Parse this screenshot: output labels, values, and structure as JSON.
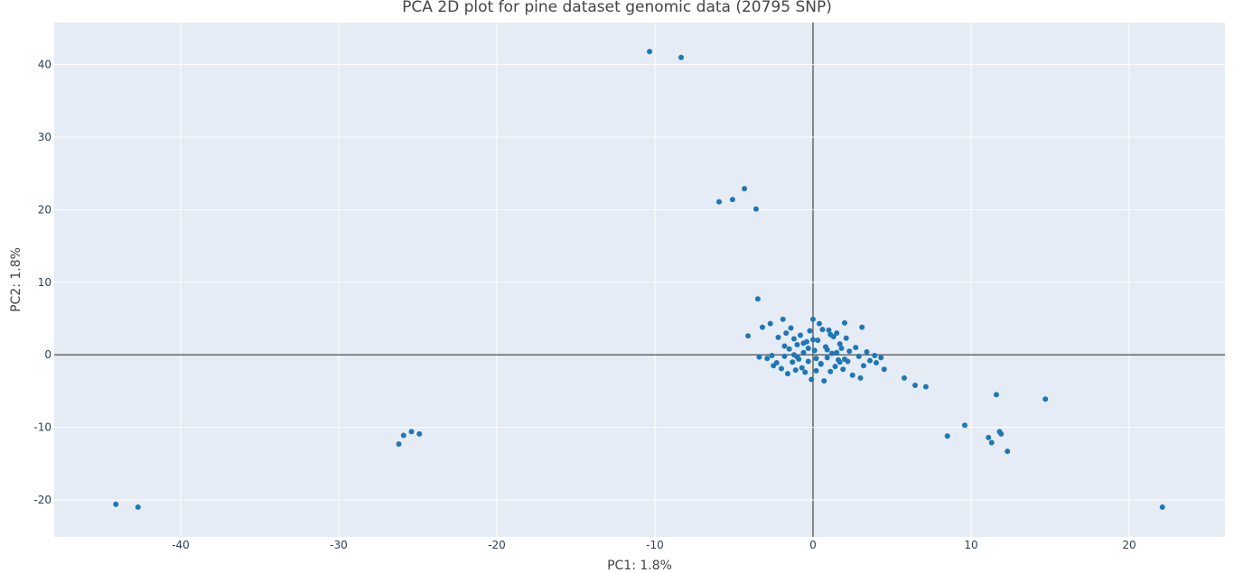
{
  "chart_data": {
    "type": "scatter",
    "title": "PCA 2D plot for pine dataset genomic data (20795 SNP)",
    "x_label": "PC1: 1.8%",
    "y_label": "PC2: 1.8%",
    "xlim": [
      -48,
      26.06
    ],
    "ylim": [
      -25.1,
      45.8
    ],
    "xticks": [
      -40,
      -30,
      -20,
      -10,
      0,
      10,
      20
    ],
    "yticks": [
      -20,
      -10,
      0,
      10,
      20,
      30,
      40
    ],
    "grid": true,
    "zero_lines": true,
    "series": [
      {
        "color": "#1f77b4",
        "x": [
          -10.34,
          -8.34,
          -4.34,
          -5.09,
          -5.94,
          -3.6,
          -3.49,
          -4.11,
          -44.1,
          -42.7,
          -26.2,
          -25.9,
          -25.4,
          -24.9,
          22.1,
          14.7,
          11.6,
          9.6,
          8.5,
          11.1,
          11.3,
          11.8,
          11.9,
          12.3,
          5.77,
          6.46,
          7.14,
          4.5,
          4.0,
          4.3,
          -3.4,
          -3.2,
          -2.9,
          -2.7,
          -2.5,
          -2.3,
          -2.2,
          -2.0,
          -1.9,
          -1.8,
          -1.7,
          -1.6,
          -1.5,
          -1.4,
          -1.3,
          -1.2,
          -1.1,
          -1.0,
          -0.9,
          -0.8,
          -0.7,
          -0.6,
          -0.5,
          -0.4,
          -0.3,
          -0.2,
          -0.1,
          0.0,
          0.1,
          0.2,
          0.3,
          0.4,
          0.5,
          0.6,
          0.7,
          0.8,
          0.9,
          1.0,
          1.1,
          1.2,
          1.3,
          1.4,
          1.5,
          1.6,
          1.7,
          1.8,
          1.9,
          2.0,
          2.1,
          2.2,
          2.3,
          2.5,
          2.7,
          2.9,
          3.1,
          3.2,
          3.4,
          3.6,
          3.9,
          -1.8,
          -1.2,
          -0.6,
          0.2,
          0.9,
          1.5,
          2.0,
          1.1,
          -0.3,
          0.5,
          -1.0,
          3.0,
          -2.6,
          0.0,
          1.7
        ],
        "y": [
          41.8,
          41.0,
          22.9,
          21.4,
          21.1,
          20.1,
          7.7,
          2.6,
          -20.6,
          -21.0,
          -12.3,
          -11.1,
          -10.6,
          -10.9,
          -21.0,
          -6.1,
          -5.5,
          -9.7,
          -11.2,
          -11.4,
          -12.1,
          -10.6,
          -10.9,
          -13.3,
          -3.2,
          -4.2,
          -4.4,
          -2.0,
          -1.1,
          -0.4,
          -0.3,
          3.8,
          -0.5,
          4.3,
          -1.5,
          -1.1,
          2.4,
          -1.9,
          4.9,
          -0.2,
          3.0,
          -2.6,
          0.8,
          3.7,
          -1.0,
          2.2,
          -2.1,
          1.4,
          -0.6,
          2.7,
          -1.8,
          0.3,
          -2.4,
          1.8,
          -0.9,
          3.3,
          -3.4,
          4.9,
          0.6,
          -2.2,
          2.0,
          4.3,
          -1.3,
          3.5,
          -3.6,
          1.1,
          -0.4,
          3.4,
          -2.3,
          0.2,
          2.5,
          -1.6,
          3.0,
          -0.7,
          1.5,
          0.9,
          -2.0,
          4.4,
          2.3,
          -0.9,
          0.5,
          -2.8,
          1.0,
          -0.2,
          3.8,
          -1.5,
          0.4,
          -0.8,
          -0.1,
          1.2,
          0.0,
          1.6,
          -0.5,
          0.7,
          0.3,
          -0.6,
          2.8,
          0.9,
          -1.2,
          -0.3,
          -3.2,
          -0.1,
          2.1,
          -1.0
        ]
      }
    ]
  }
}
